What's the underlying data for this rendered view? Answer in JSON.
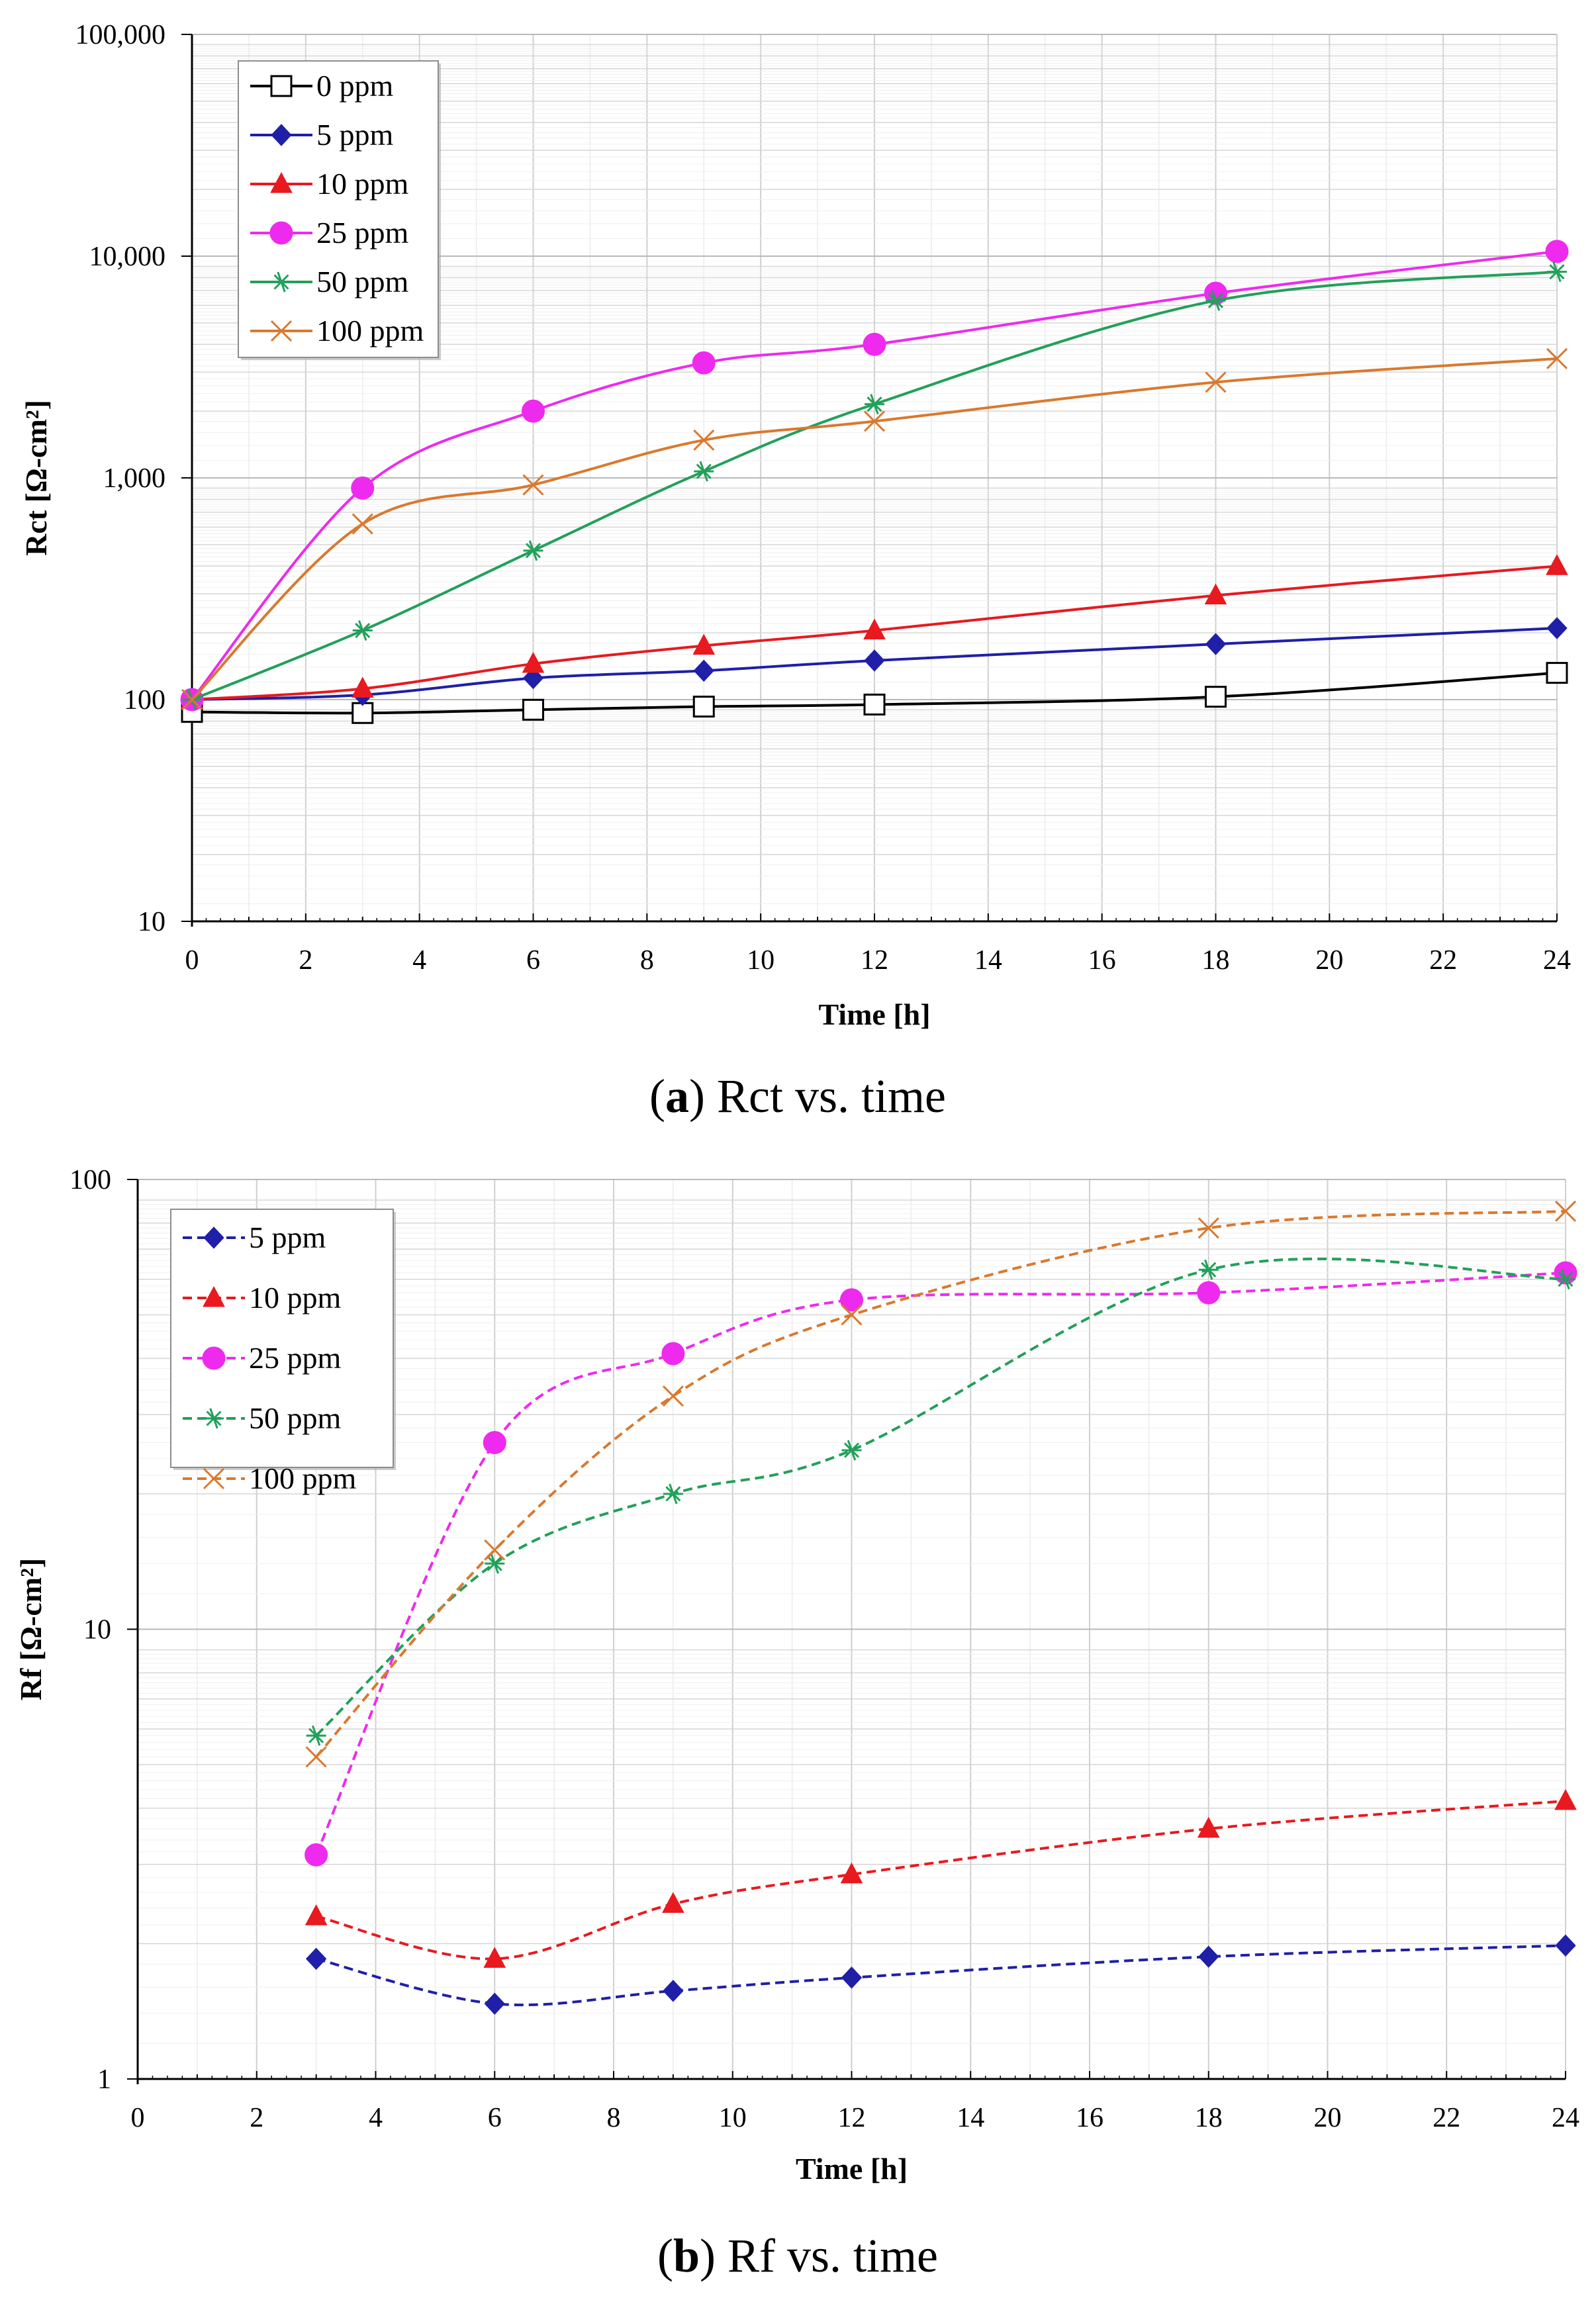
{
  "chart_data": [
    {
      "type": "line",
      "panel": "a",
      "caption_letter": "a",
      "caption_text": "Rct vs. time",
      "xlabel": "Time [h]",
      "ylabel": "Rct [Ω-cm²]",
      "yscale": "log",
      "xlim": [
        0,
        24
      ],
      "ylim": [
        10,
        100000
      ],
      "xticks": [
        "0",
        "2",
        "4",
        "6",
        "8",
        "10",
        "12",
        "14",
        "16",
        "18",
        "20",
        "22",
        "24"
      ],
      "yticks": [
        "10",
        "100",
        "1,000",
        "10,000",
        "100,000"
      ],
      "legend_position": "top-left",
      "series": [
        {
          "name": "0 ppm",
          "color": "#000000",
          "marker": "square-open",
          "dashed": false,
          "x": [
            0,
            3,
            6,
            9,
            12,
            18,
            24
          ],
          "y": [
            88,
            87,
            90,
            93,
            95,
            103,
            132
          ]
        },
        {
          "name": "5 ppm",
          "color": "#1f1fa8",
          "marker": "diamond",
          "dashed": false,
          "x": [
            0,
            3,
            6,
            9,
            12,
            18,
            24
          ],
          "y": [
            100,
            105,
            125,
            135,
            150,
            178,
            210
          ]
        },
        {
          "name": "10 ppm",
          "color": "#e8191f",
          "marker": "triangle",
          "dashed": false,
          "x": [
            0,
            3,
            6,
            9,
            12,
            18,
            24
          ],
          "y": [
            100,
            112,
            145,
            175,
            205,
            295,
            400
          ]
        },
        {
          "name": "25 ppm",
          "color": "#ee2aee",
          "marker": "circle",
          "dashed": false,
          "x": [
            0,
            3,
            6,
            9,
            12,
            18,
            24
          ],
          "y": [
            100,
            900,
            2000,
            3300,
            4000,
            6800,
            10500
          ]
        },
        {
          "name": "50 ppm",
          "color": "#22a05a",
          "marker": "asterisk",
          "dashed": false,
          "x": [
            0,
            3,
            6,
            9,
            12,
            18,
            24
          ],
          "y": [
            100,
            205,
            470,
            1070,
            2150,
            6300,
            8500
          ]
        },
        {
          "name": "100 ppm",
          "color": "#d9792f",
          "marker": "cross",
          "dashed": false,
          "x": [
            0,
            3,
            6,
            9,
            12,
            18,
            24
          ],
          "y": [
            100,
            620,
            930,
            1480,
            1800,
            2700,
            3450
          ]
        }
      ]
    },
    {
      "type": "line",
      "panel": "b",
      "caption_letter": "b",
      "caption_text": "Rf vs. time",
      "xlabel": "Time [h]",
      "ylabel": "Rf [Ω-cm²]",
      "yscale": "log",
      "xlim": [
        0,
        24
      ],
      "ylim": [
        1,
        100
      ],
      "xticks": [
        "0",
        "2",
        "4",
        "6",
        "8",
        "10",
        "12",
        "14",
        "16",
        "18",
        "20",
        "22",
        "24"
      ],
      "yticks": [
        "1",
        "10",
        "100"
      ],
      "legend_position": "top-left",
      "series": [
        {
          "name": "5 ppm",
          "color": "#1f1fa8",
          "marker": "diamond",
          "dashed": true,
          "x": [
            3,
            6,
            9,
            12,
            18,
            24
          ],
          "y": [
            1.85,
            1.47,
            1.57,
            1.68,
            1.87,
            1.98
          ]
        },
        {
          "name": "10 ppm",
          "color": "#e8191f",
          "marker": "triangle",
          "dashed": true,
          "x": [
            3,
            6,
            9,
            12,
            18,
            24
          ],
          "y": [
            2.3,
            1.85,
            2.45,
            2.85,
            3.6,
            4.15
          ]
        },
        {
          "name": "25 ppm",
          "color": "#ee2aee",
          "marker": "circle",
          "dashed": true,
          "x": [
            3,
            6,
            9,
            12,
            18,
            24
          ],
          "y": [
            3.15,
            26,
            41,
            54,
            56,
            62
          ]
        },
        {
          "name": "50 ppm",
          "color": "#22a05a",
          "marker": "asterisk",
          "dashed": true,
          "x": [
            3,
            6,
            9,
            12,
            18,
            24
          ],
          "y": [
            5.8,
            14,
            20,
            25,
            63,
            60
          ]
        },
        {
          "name": "100 ppm",
          "color": "#d9792f",
          "marker": "cross",
          "dashed": true,
          "x": [
            3,
            6,
            9,
            12,
            18,
            24
          ],
          "y": [
            5.2,
            15,
            33,
            50,
            78,
            85
          ]
        }
      ]
    }
  ]
}
